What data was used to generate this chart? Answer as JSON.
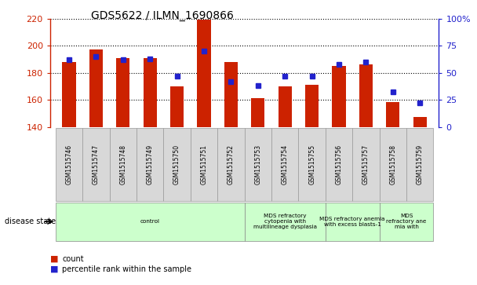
{
  "title": "GDS5622 / ILMN_1690866",
  "samples": [
    "GSM1515746",
    "GSM1515747",
    "GSM1515748",
    "GSM1515749",
    "GSM1515750",
    "GSM1515751",
    "GSM1515752",
    "GSM1515753",
    "GSM1515754",
    "GSM1515755",
    "GSM1515756",
    "GSM1515757",
    "GSM1515758",
    "GSM1515759"
  ],
  "counts": [
    188,
    197,
    191,
    191,
    170,
    219,
    188,
    161,
    170,
    171,
    185,
    186,
    158,
    147
  ],
  "percentile": [
    62,
    65,
    62,
    63,
    47,
    70,
    42,
    38,
    47,
    47,
    58,
    60,
    32,
    22
  ],
  "ylim_left": [
    140,
    220
  ],
  "ylim_right": [
    0,
    100
  ],
  "yticks_left": [
    140,
    160,
    180,
    200,
    220
  ],
  "yticks_right": [
    0,
    25,
    50,
    75,
    100
  ],
  "bar_color": "#CC2200",
  "dot_color": "#2222CC",
  "bg_color": "#FFFFFF",
  "groups": [
    {
      "label": "control",
      "start": 0,
      "end": 6
    },
    {
      "label": "MDS refractory\ncytopenia with\nmultilineage dysplasia",
      "start": 7,
      "end": 9
    },
    {
      "label": "MDS refractory anemia\nwith excess blasts-1",
      "start": 10,
      "end": 11
    },
    {
      "label": "MDS\nrefractory ane\nmia with",
      "start": 12,
      "end": 13
    }
  ],
  "group_color": "#CCFFCC",
  "sample_box_color": "#D8D8D8",
  "sample_box_edge": "#999999",
  "legend_count_label": "count",
  "legend_pct_label": "percentile rank within the sample",
  "disease_state_label": "disease state"
}
